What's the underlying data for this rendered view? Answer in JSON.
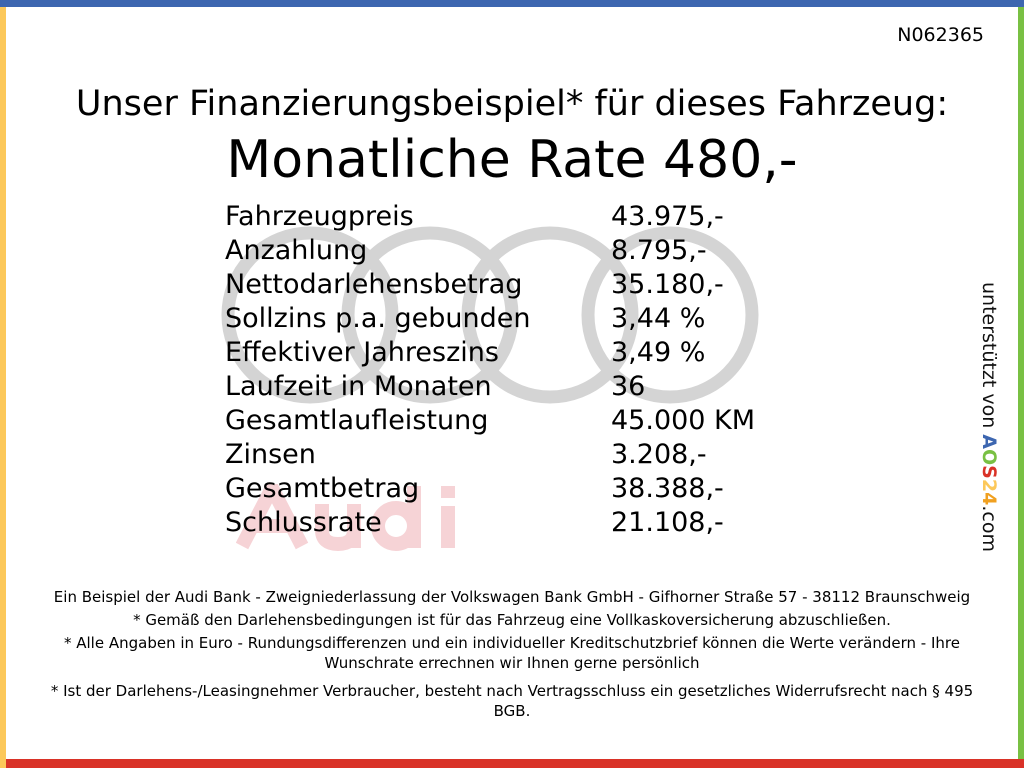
{
  "code": "N062365",
  "title": "Unser Finanzierungsbeispiel* für dieses Fahrzeug:",
  "rate": "Monatliche Rate 480,-",
  "watermark": {
    "brand": "Audi",
    "ring_color": "#d4d4d4",
    "text_color": "#f6d3d6"
  },
  "rows": [
    {
      "label": "Fahrzeugpreis",
      "value": "43.975,-"
    },
    {
      "label": "Anzahlung",
      "value": "8.795,-"
    },
    {
      "label": "Nettodarlehensbetrag",
      "value": "35.180,-"
    },
    {
      "label": "Sollzins p.a. gebunden",
      "value": "3,44 %"
    },
    {
      "label": "Effektiver Jahreszins",
      "value": "3,49 %"
    },
    {
      "label": "Laufzeit in Monaten",
      "value": "36"
    },
    {
      "label": "Gesamtlaufleistung",
      "value": "45.000 KM"
    },
    {
      "label": "Zinsen",
      "value": "3.208,-"
    },
    {
      "label": "Gesamtbetrag",
      "value": "38.388,-"
    },
    {
      "label": "Schlussrate",
      "value": "21.108,-"
    }
  ],
  "side": {
    "prefix": "unterstützt von ",
    "logo": [
      "A",
      "O",
      "S",
      "2",
      "4"
    ],
    "logo_colors": [
      "#3d66b0",
      "#79c043",
      "#d93227",
      "#fcc85a",
      "#f0a020"
    ],
    "suffix": ".com"
  },
  "footer": [
    "Ein Beispiel der Audi Bank - Zweigniederlassung der Volkswagen Bank GmbH - Gifhorner Straße 57 - 38112 Braunschweig",
    "* Gemäß den Darlehensbedingungen ist für das Fahrzeug eine Vollkaskoversicherung abzuschließen.",
    "* Alle Angaben in Euro - Rundungsdifferenzen und ein individueller Kreditschutzbrief können die Werte verändern - Ihre Wunschrate errechnen wir Ihnen gerne persönlich",
    "* Ist der Darlehens-/Leasingnehmer Verbraucher, besteht nach Vertragsschluss ein gesetzliches Widerrufsrecht nach § 495 BGB."
  ],
  "colors": {
    "top": "#3d66b0",
    "left": "#fcc85a",
    "right": "#79c043",
    "bottom": "#d93227"
  }
}
